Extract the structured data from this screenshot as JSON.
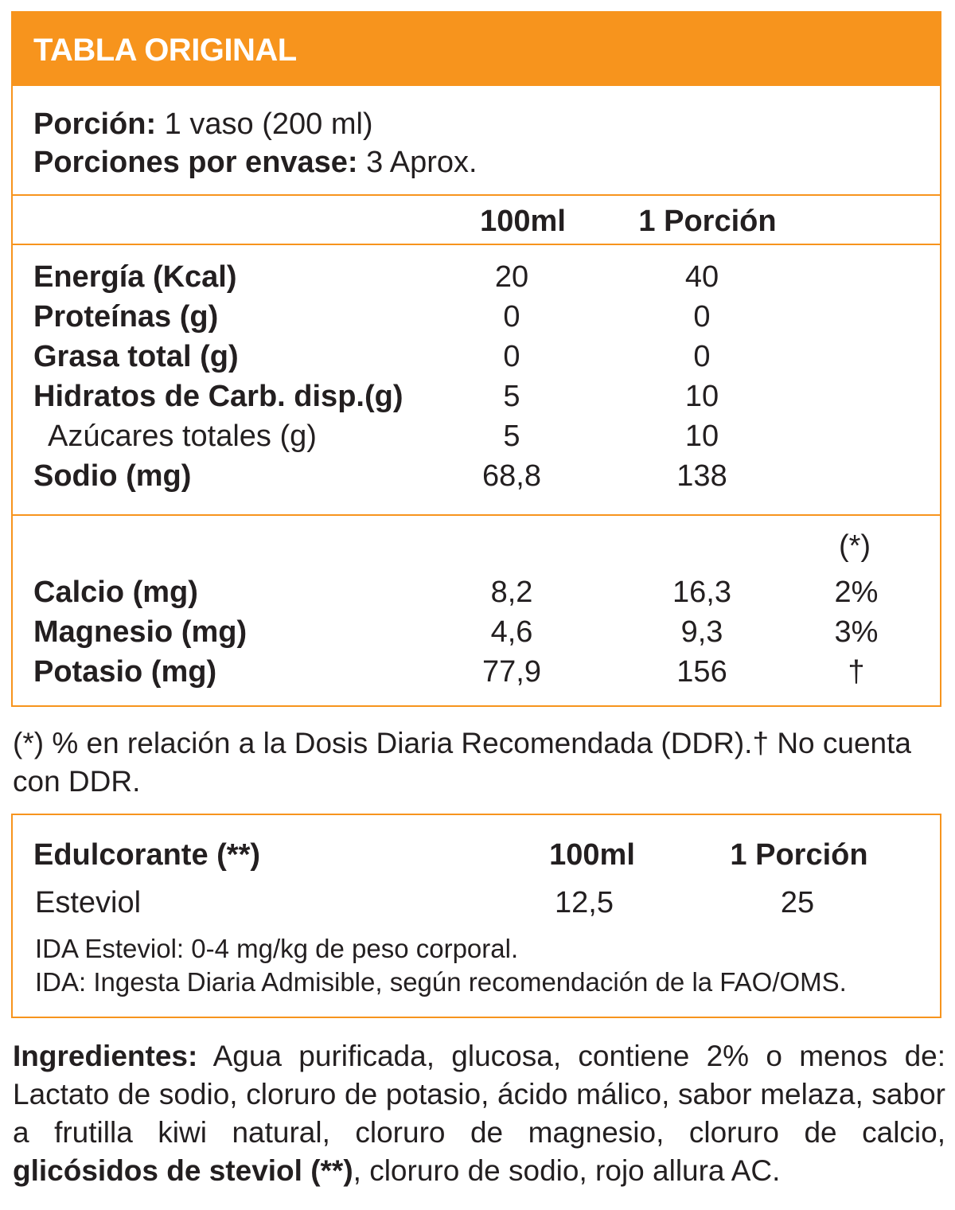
{
  "header": {
    "title": "TABLA ORIGINAL"
  },
  "serving": {
    "portion_label": "Porción:",
    "portion_value": " 1 vaso (200 ml)",
    "per_pack_label": "Porciones por envase:",
    "per_pack_value": " 3 Aprox."
  },
  "columns": {
    "per100": "100ml",
    "per_portion": "1 Porción",
    "ddr": "(*)"
  },
  "nutrients": [
    {
      "label": "Energía (Kcal)",
      "per100": "20",
      "portion": "40",
      "bold": true
    },
    {
      "label": "Proteínas (g)",
      "per100": "0",
      "portion": "0",
      "bold": true
    },
    {
      "label": "Grasa total (g)",
      "per100": "0",
      "portion": "0",
      "bold": true
    },
    {
      "label": "Hidratos de Carb. disp.(g)",
      "per100": "5",
      "portion": "10",
      "bold": true
    },
    {
      "label": "Azúcares totales (g)",
      "per100": "5",
      "portion": "10",
      "bold": false
    },
    {
      "label": "Sodio (mg)",
      "per100": "68,8",
      "portion": "138",
      "bold": true
    }
  ],
  "minerals": [
    {
      "label": "Calcio (mg)",
      "per100": "8,2",
      "portion": "16,3",
      "ddr": "2%"
    },
    {
      "label": "Magnesio (mg)",
      "per100": "4,6",
      "portion": "9,3",
      "ddr": "3%"
    },
    {
      "label": "Potasio (mg)",
      "per100": "77,9",
      "portion": "156",
      "ddr": "†"
    }
  ],
  "footnote": "(*) % en relación a la Dosis Diaria Recomendada (DDR).† No cuenta con DDR.",
  "sweetener": {
    "header_label": "Edulcorante (**)",
    "per100": "100ml",
    "per_portion": "1 Porción",
    "name": "Esteviol",
    "value100": "12,5",
    "value_portion": "25",
    "ida_line": "IDA Esteviol: 0-4 mg/kg de peso corporal.",
    "ida_def": "IDA: Ingesta Diaria Admisible, según recomendación de la FAO/OMS."
  },
  "ingredients": {
    "label": "Ingredientes:",
    "text1": "  Agua purificada, glucosa, contiene 2% o menos de: Lactato de sodio, cloruro de potasio, ácido málico, sabor melaza, sabor a frutilla kiwi natural, cloruro de magnesio, cloruro de calcio, ",
    "bold_part": "glicósidos de steviol (**)",
    "text2": ", cloruro de sodio, rojo allura AC."
  }
}
